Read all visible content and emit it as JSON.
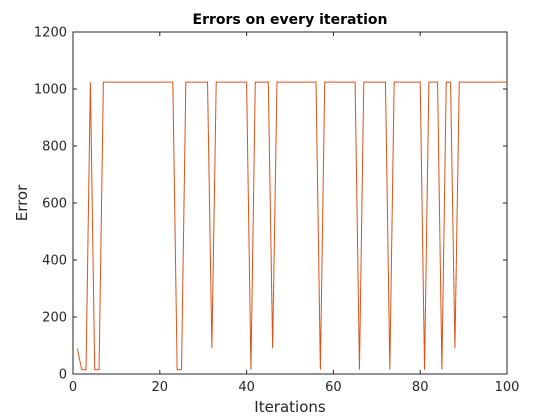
{
  "chart_data": {
    "type": "line",
    "title": "Errors on every iteration",
    "xlabel": "Iterations",
    "ylabel": "Error",
    "xlim": [
      0,
      100
    ],
    "ylim": [
      0,
      1200
    ],
    "xticks": [
      0,
      20,
      40,
      60,
      80,
      100
    ],
    "yticks": [
      0,
      200,
      400,
      600,
      800,
      1000,
      1200
    ],
    "grid": false,
    "line_color": "#d95319",
    "series": [
      {
        "x": [
          1,
          2,
          3,
          4,
          5,
          6,
          7,
          8,
          9,
          10,
          11,
          12,
          13,
          14,
          15,
          16,
          17,
          18,
          19,
          20,
          21,
          22,
          23,
          24,
          25,
          26,
          27,
          28,
          29,
          30,
          31,
          32,
          33,
          34,
          35,
          36,
          37,
          38,
          39,
          40,
          41,
          42,
          43,
          44,
          45,
          46,
          47,
          48,
          49,
          50,
          51,
          52,
          53,
          54,
          55,
          56,
          57,
          58,
          59,
          60,
          61,
          62,
          63,
          64,
          65,
          66,
          67,
          68,
          69,
          70,
          71,
          72,
          73,
          74,
          75,
          76,
          77,
          78,
          79,
          80,
          81,
          82,
          83,
          84,
          85,
          86,
          87,
          88,
          89,
          90,
          91,
          92,
          93,
          94,
          95,
          96,
          97,
          98,
          99,
          100
        ],
        "y": [
          90,
          15,
          15,
          1024,
          15,
          15,
          1024,
          1024,
          1024,
          1024,
          1024,
          1024,
          1024,
          1024,
          1024,
          1024,
          1024,
          1024,
          1024,
          1024,
          1024,
          1024,
          1024,
          15,
          15,
          1024,
          1024,
          1024,
          1024,
          1024,
          1024,
          90,
          1024,
          1024,
          1024,
          1024,
          1024,
          1024,
          1024,
          1024,
          15,
          1024,
          1024,
          1024,
          1024,
          90,
          1024,
          1024,
          1024,
          1024,
          1024,
          1024,
          1024,
          1024,
          1024,
          1024,
          15,
          1024,
          1024,
          1024,
          1024,
          1024,
          1024,
          1024,
          1024,
          15,
          1024,
          1024,
          1024,
          1024,
          1024,
          1024,
          15,
          1024,
          1024,
          1024,
          1024,
          1024,
          1024,
          1024,
          15,
          1024,
          1024,
          1024,
          15,
          1024,
          1024,
          90,
          1024,
          1024,
          1024,
          1024,
          1024,
          1024,
          1024,
          1024,
          1024,
          1024,
          1024,
          1024
        ]
      }
    ]
  }
}
